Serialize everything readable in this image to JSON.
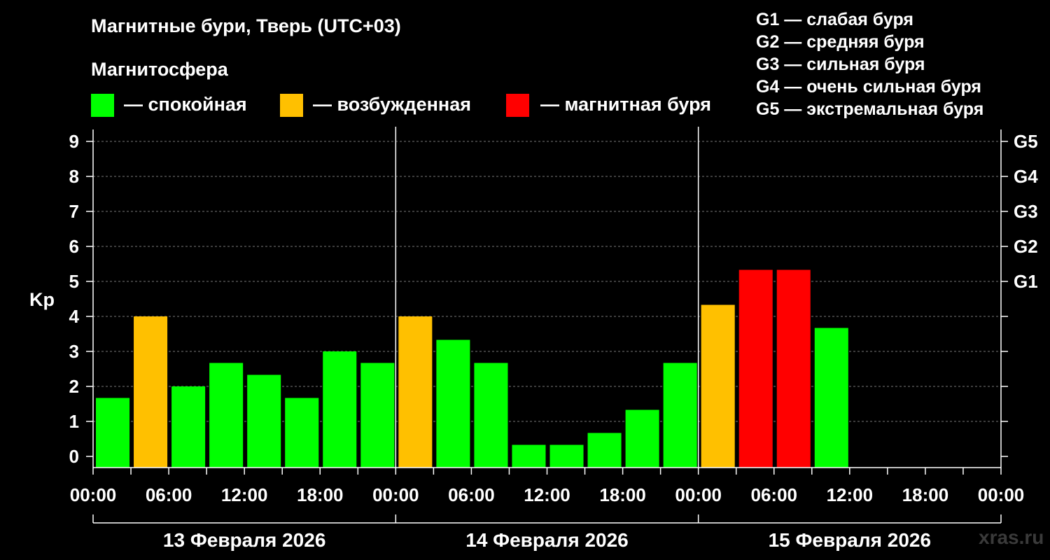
{
  "header": {
    "title": "Магнитные бури, Тверь (UTC+03)",
    "subtitle": "Магнитосфера"
  },
  "legend": [
    {
      "label": "— спокойная",
      "color": "#00ff00"
    },
    {
      "label": "— возбужденная",
      "color": "#ffc000"
    },
    {
      "label": "— магнитная буря",
      "color": "#ff0000"
    }
  ],
  "storm_scale": [
    "G1 — слабая буря",
    "G2 — средняя буря",
    "G3 — сильная буря",
    "G4 — очень сильная буря",
    "G5 — экстремальная буря"
  ],
  "watermark": "xras.ru",
  "chart_data": {
    "type": "bar",
    "ylabel": "Kp",
    "ylim": [
      0,
      9
    ],
    "yticks": [
      0,
      1,
      2,
      3,
      4,
      5,
      6,
      7,
      8,
      9
    ],
    "right_axis_labels": [
      {
        "value": 5,
        "label": "G1"
      },
      {
        "value": 6,
        "label": "G2"
      },
      {
        "value": 7,
        "label": "G3"
      },
      {
        "value": 8,
        "label": "G4"
      },
      {
        "value": 9,
        "label": "G5"
      }
    ],
    "xtick_labels": [
      "00:00",
      "06:00",
      "12:00",
      "18:00",
      "00:00",
      "06:00",
      "12:00",
      "18:00",
      "00:00",
      "06:00",
      "12:00",
      "18:00",
      "00:00"
    ],
    "days": [
      "13 Февраля 2026",
      "14 Февраля 2026",
      "15 Февраля 2026"
    ],
    "grid": true,
    "colors": {
      "calm": "#00ff00",
      "active": "#ffc000",
      "storm": "#ff0000"
    },
    "bars": [
      {
        "day": 0,
        "start_hour": 0,
        "value": 1.67,
        "level": "calm"
      },
      {
        "day": 0,
        "start_hour": 3,
        "value": 4.0,
        "level": "active"
      },
      {
        "day": 0,
        "start_hour": 6,
        "value": 2.0,
        "level": "calm"
      },
      {
        "day": 0,
        "start_hour": 9,
        "value": 2.67,
        "level": "calm"
      },
      {
        "day": 0,
        "start_hour": 12,
        "value": 2.33,
        "level": "calm"
      },
      {
        "day": 0,
        "start_hour": 15,
        "value": 1.67,
        "level": "calm"
      },
      {
        "day": 0,
        "start_hour": 18,
        "value": 3.0,
        "level": "calm"
      },
      {
        "day": 0,
        "start_hour": 21,
        "value": 2.67,
        "level": "calm"
      },
      {
        "day": 1,
        "start_hour": 0,
        "value": 4.0,
        "level": "active"
      },
      {
        "day": 1,
        "start_hour": 3,
        "value": 3.33,
        "level": "calm"
      },
      {
        "day": 1,
        "start_hour": 6,
        "value": 2.67,
        "level": "calm"
      },
      {
        "day": 1,
        "start_hour": 9,
        "value": 0.33,
        "level": "calm"
      },
      {
        "day": 1,
        "start_hour": 12,
        "value": 0.33,
        "level": "calm"
      },
      {
        "day": 1,
        "start_hour": 15,
        "value": 0.67,
        "level": "calm"
      },
      {
        "day": 1,
        "start_hour": 18,
        "value": 1.33,
        "level": "calm"
      },
      {
        "day": 1,
        "start_hour": 21,
        "value": 2.67,
        "level": "calm"
      },
      {
        "day": 2,
        "start_hour": 0,
        "value": 4.33,
        "level": "active"
      },
      {
        "day": 2,
        "start_hour": 3,
        "value": 5.33,
        "level": "storm"
      },
      {
        "day": 2,
        "start_hour": 6,
        "value": 5.33,
        "level": "storm"
      },
      {
        "day": 2,
        "start_hour": 9,
        "value": 3.67,
        "level": "calm"
      }
    ]
  }
}
